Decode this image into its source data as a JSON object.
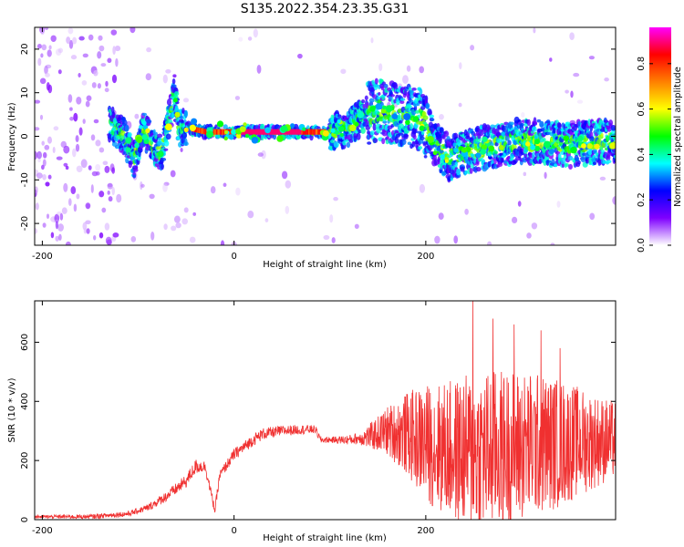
{
  "title": "S135.2022.354.23.35.G31",
  "chart_data": [
    {
      "type": "heatmap",
      "xlabel": "Height of straight line (km)",
      "ylabel": "Frequency (Hz)",
      "xlim": [
        -208,
        398
      ],
      "ylim": [
        -25,
        25
      ],
      "x_ticks": [
        -200,
        0,
        200
      ],
      "y_ticks": [
        -20,
        -10,
        0,
        10,
        20
      ],
      "colorbar": {
        "label": "Normalized spectral amplitude",
        "range": [
          0.0,
          0.96
        ],
        "ticks": [
          0.0,
          0.2,
          0.4,
          0.6,
          0.8
        ],
        "tick_labels": [
          "0.0",
          "0.2",
          "0.4",
          "0.6",
          "0.8"
        ],
        "colormap": [
          "#ffffff",
          "#7f00ff",
          "#0000ff",
          "#00ffff",
          "#00ff00",
          "#ffff00",
          "#ff8000",
          "#ff0000",
          "#ff00ff"
        ]
      },
      "ridge_centre_hz": [
        [
          -130,
          3
        ],
        [
          -115,
          0
        ],
        [
          -105,
          -6
        ],
        [
          -95,
          2
        ],
        [
          -85,
          -2
        ],
        [
          -75,
          -4
        ],
        [
          -68,
          4
        ],
        [
          -62,
          10
        ],
        [
          -58,
          2
        ],
        [
          -50,
          2
        ],
        [
          -30,
          1
        ],
        [
          0,
          1
        ],
        [
          70,
          1
        ],
        [
          100,
          1
        ],
        [
          120,
          2
        ],
        [
          135,
          5
        ],
        [
          150,
          6
        ],
        [
          170,
          5
        ],
        [
          195,
          4
        ],
        [
          210,
          -2
        ],
        [
          225,
          -5
        ],
        [
          250,
          -3
        ],
        [
          300,
          -1
        ],
        [
          350,
          -2
        ],
        [
          398,
          -1
        ]
      ]
    },
    {
      "type": "line",
      "xlabel": "Height of straight line (km)",
      "ylabel": "SNR (10 * v/v)",
      "xlim": [
        -208,
        398
      ],
      "ylim": [
        0,
        740
      ],
      "x_ticks": [
        -200,
        0,
        200
      ],
      "y_ticks": [
        0,
        200,
        400,
        600
      ],
      "line_color": "#f03030",
      "mean_profile": [
        [
          -208,
          10
        ],
        [
          -150,
          10
        ],
        [
          -110,
          20
        ],
        [
          -90,
          40
        ],
        [
          -70,
          80
        ],
        [
          -50,
          130
        ],
        [
          -40,
          180
        ],
        [
          -30,
          180
        ],
        [
          -20,
          30
        ],
        [
          -15,
          150
        ],
        [
          0,
          220
        ],
        [
          20,
          270
        ],
        [
          30,
          290
        ],
        [
          50,
          300
        ],
        [
          70,
          305
        ],
        [
          85,
          305
        ],
        [
          90,
          270
        ],
        [
          120,
          270
        ],
        [
          140,
          280
        ],
        [
          160,
          300
        ],
        [
          180,
          290
        ],
        [
          200,
          260
        ],
        [
          230,
          230
        ],
        [
          260,
          230
        ],
        [
          300,
          250
        ],
        [
          340,
          260
        ],
        [
          398,
          270
        ]
      ],
      "amplitude_profile": [
        [
          -208,
          5
        ],
        [
          -100,
          10
        ],
        [
          -60,
          20
        ],
        [
          -40,
          25
        ],
        [
          -20,
          15
        ],
        [
          0,
          20
        ],
        [
          30,
          20
        ],
        [
          80,
          15
        ],
        [
          100,
          10
        ],
        [
          130,
          20
        ],
        [
          150,
          60
        ],
        [
          170,
          110
        ],
        [
          200,
          200
        ],
        [
          240,
          260
        ],
        [
          260,
          280
        ],
        [
          300,
          260
        ],
        [
          340,
          220
        ],
        [
          370,
          170
        ],
        [
          398,
          130
        ]
      ],
      "peak_values": [
        [
          249,
          740
        ],
        [
          270,
          680
        ],
        [
          292,
          660
        ],
        [
          320,
          640
        ],
        [
          340,
          580
        ]
      ]
    }
  ]
}
